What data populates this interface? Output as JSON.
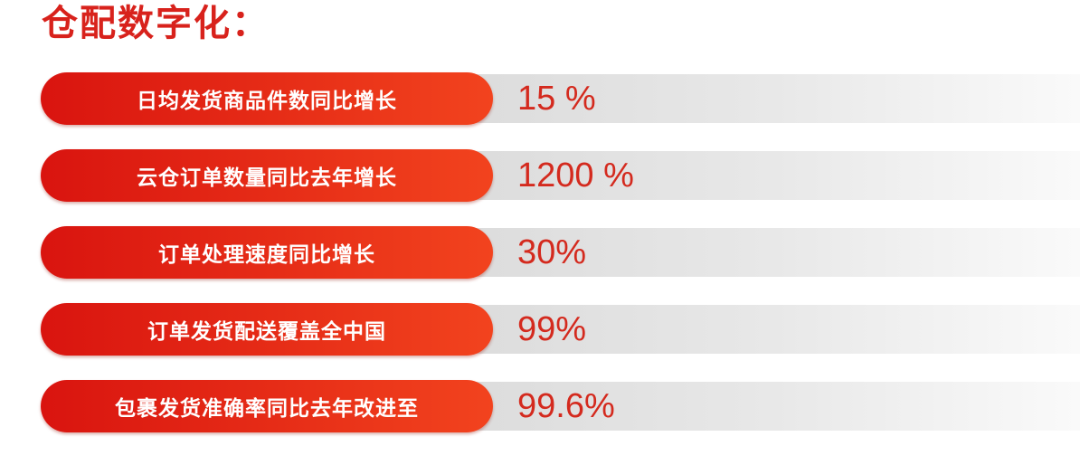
{
  "title": "仓配数字化：",
  "colors": {
    "accent": "#d8221c",
    "pill_start": "#d9140f",
    "pill_end": "#f2431e",
    "track": "#dcdcdc"
  },
  "stats": [
    {
      "label": "日均发货商品件数同比增长",
      "value": "15 %"
    },
    {
      "label": "云仓订单数量同比去年增长",
      "value": "1200 %"
    },
    {
      "label": "订单处理速度同比增长",
      "value": "30%"
    },
    {
      "label": "订单发货配送覆盖全中国",
      "value": "99%"
    },
    {
      "label": "包裹发货准确率同比去年改进至",
      "value": "99.6%"
    }
  ]
}
